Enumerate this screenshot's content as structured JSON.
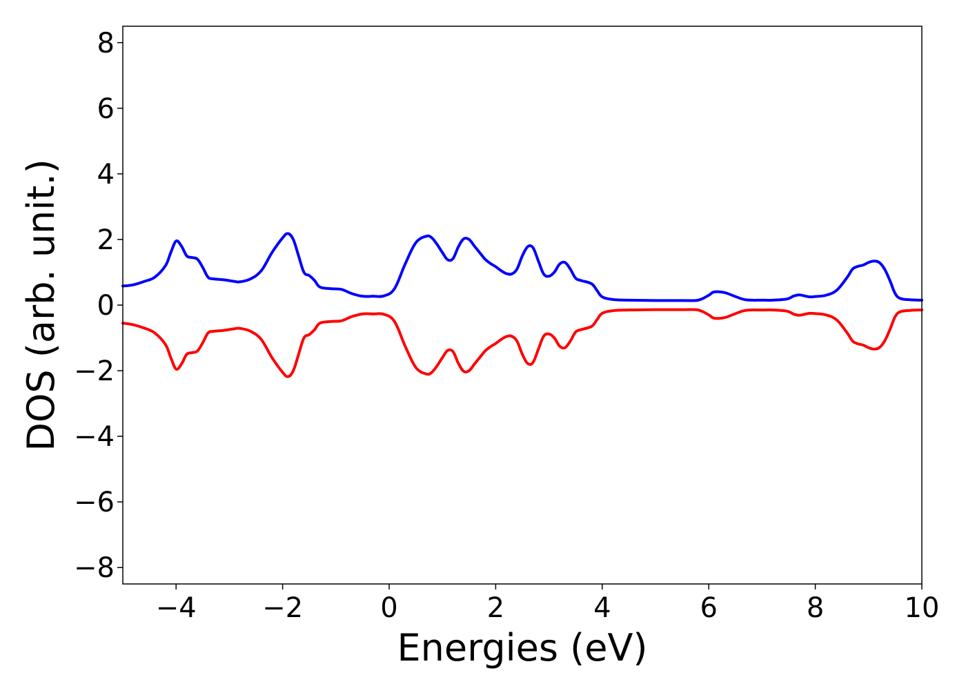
{
  "chart_data": {
    "type": "line",
    "title": "",
    "xlabel": "Energies (eV)",
    "ylabel": "DOS (arb. unit.)",
    "xlim": [
      -5,
      10
    ],
    "ylim": [
      -8.5,
      8.5
    ],
    "x_ticks": [
      -4,
      -2,
      0,
      2,
      4,
      6,
      8,
      10
    ],
    "x_tick_labels": [
      "−4",
      "−2",
      "0",
      "2",
      "4",
      "6",
      "8",
      "10"
    ],
    "y_ticks": [
      -8,
      -6,
      -4,
      -2,
      0,
      2,
      4,
      6,
      8
    ],
    "y_tick_labels": [
      "−8",
      "−6",
      "−4",
      "−2",
      "0",
      "2",
      "4",
      "6",
      "8"
    ],
    "grid": false,
    "legend": "none",
    "series": [
      {
        "color": "#0000ff",
        "x": [
          -5.0,
          -4.8,
          -4.6,
          -4.4,
          -4.2,
          -4.1,
          -4.0,
          -3.9,
          -3.8,
          -3.7,
          -3.6,
          -3.5,
          -3.4,
          -3.3,
          -3.1,
          -2.9,
          -2.8,
          -2.6,
          -2.4,
          -2.2,
          -2.0,
          -1.9,
          -1.8,
          -1.7,
          -1.6,
          -1.5,
          -1.4,
          -1.3,
          -1.1,
          -0.9,
          -0.7,
          -0.5,
          -0.3,
          -0.1,
          0.1,
          0.3,
          0.5,
          0.7,
          0.8,
          0.9,
          1.0,
          1.1,
          1.2,
          1.3,
          1.4,
          1.5,
          1.6,
          1.7,
          1.8,
          1.9,
          2.0,
          2.1,
          2.2,
          2.3,
          2.4,
          2.5,
          2.6,
          2.7,
          2.8,
          2.9,
          3.0,
          3.1,
          3.2,
          3.3,
          3.4,
          3.5,
          3.6,
          3.8,
          3.9,
          4.0,
          4.2,
          4.5,
          5.0,
          5.5,
          5.8,
          6.0,
          6.1,
          6.3,
          6.5,
          6.7,
          7.0,
          7.2,
          7.4,
          7.5,
          7.6,
          7.7,
          7.8,
          7.9,
          8.0,
          8.2,
          8.4,
          8.6,
          8.7,
          8.8,
          8.9,
          9.0,
          9.1,
          9.2,
          9.3,
          9.4,
          9.5,
          9.6,
          9.8,
          10.0
        ],
        "y": [
          0.58,
          0.62,
          0.72,
          0.85,
          1.2,
          1.6,
          1.95,
          1.8,
          1.5,
          1.45,
          1.4,
          1.15,
          0.85,
          0.8,
          0.77,
          0.72,
          0.71,
          0.8,
          1.05,
          1.6,
          2.05,
          2.18,
          2.0,
          1.5,
          1.0,
          0.9,
          0.75,
          0.55,
          0.5,
          0.48,
          0.35,
          0.27,
          0.27,
          0.28,
          0.5,
          1.25,
          1.9,
          2.1,
          2.05,
          1.85,
          1.6,
          1.38,
          1.42,
          1.78,
          2.02,
          2.0,
          1.8,
          1.6,
          1.4,
          1.27,
          1.17,
          1.05,
          0.96,
          0.95,
          1.1,
          1.5,
          1.78,
          1.75,
          1.35,
          0.95,
          0.88,
          1.0,
          1.25,
          1.3,
          1.1,
          0.82,
          0.75,
          0.65,
          0.45,
          0.25,
          0.17,
          0.15,
          0.14,
          0.14,
          0.15,
          0.3,
          0.4,
          0.38,
          0.26,
          0.16,
          0.15,
          0.15,
          0.17,
          0.2,
          0.28,
          0.31,
          0.28,
          0.25,
          0.26,
          0.3,
          0.45,
          0.85,
          1.1,
          1.18,
          1.22,
          1.3,
          1.34,
          1.3,
          1.1,
          0.75,
          0.35,
          0.2,
          0.16,
          0.15
        ]
      },
      {
        "color": "#ff0000",
        "x": [
          -5.0,
          -4.8,
          -4.6,
          -4.4,
          -4.2,
          -4.1,
          -4.0,
          -3.9,
          -3.8,
          -3.7,
          -3.6,
          -3.5,
          -3.4,
          -3.3,
          -3.1,
          -2.9,
          -2.8,
          -2.6,
          -2.4,
          -2.2,
          -2.0,
          -1.9,
          -1.8,
          -1.7,
          -1.6,
          -1.5,
          -1.4,
          -1.3,
          -1.1,
          -0.9,
          -0.7,
          -0.5,
          -0.3,
          -0.1,
          0.1,
          0.3,
          0.5,
          0.7,
          0.8,
          0.9,
          1.0,
          1.1,
          1.2,
          1.3,
          1.4,
          1.5,
          1.6,
          1.7,
          1.8,
          1.9,
          2.0,
          2.1,
          2.2,
          2.3,
          2.4,
          2.5,
          2.6,
          2.7,
          2.8,
          2.9,
          3.0,
          3.1,
          3.2,
          3.3,
          3.4,
          3.5,
          3.6,
          3.8,
          3.9,
          4.0,
          4.2,
          4.5,
          5.0,
          5.5,
          5.8,
          6.0,
          6.1,
          6.3,
          6.5,
          6.7,
          7.0,
          7.2,
          7.4,
          7.5,
          7.6,
          7.7,
          7.8,
          7.9,
          8.0,
          8.2,
          8.4,
          8.6,
          8.7,
          8.8,
          8.9,
          9.0,
          9.1,
          9.2,
          9.3,
          9.4,
          9.5,
          9.6,
          9.8,
          10.0
        ],
        "y": [
          -0.55,
          -0.6,
          -0.7,
          -0.85,
          -1.2,
          -1.6,
          -1.95,
          -1.8,
          -1.5,
          -1.45,
          -1.4,
          -1.15,
          -0.85,
          -0.8,
          -0.77,
          -0.72,
          -0.71,
          -0.8,
          -1.05,
          -1.6,
          -2.05,
          -2.18,
          -2.0,
          -1.5,
          -1.0,
          -0.9,
          -0.75,
          -0.55,
          -0.5,
          -0.48,
          -0.35,
          -0.27,
          -0.27,
          -0.28,
          -0.5,
          -1.25,
          -1.9,
          -2.1,
          -2.05,
          -1.85,
          -1.6,
          -1.38,
          -1.42,
          -1.78,
          -2.02,
          -2.0,
          -1.8,
          -1.6,
          -1.4,
          -1.27,
          -1.17,
          -1.05,
          -0.96,
          -0.95,
          -1.1,
          -1.5,
          -1.78,
          -1.75,
          -1.35,
          -0.95,
          -0.88,
          -1.0,
          -1.25,
          -1.3,
          -1.1,
          -0.82,
          -0.75,
          -0.65,
          -0.45,
          -0.25,
          -0.17,
          -0.15,
          -0.14,
          -0.14,
          -0.15,
          -0.3,
          -0.4,
          -0.38,
          -0.26,
          -0.16,
          -0.15,
          -0.15,
          -0.17,
          -0.2,
          -0.28,
          -0.31,
          -0.28,
          -0.25,
          -0.26,
          -0.3,
          -0.45,
          -0.85,
          -1.1,
          -1.18,
          -1.22,
          -1.3,
          -1.34,
          -1.3,
          -1.1,
          -0.75,
          -0.35,
          -0.2,
          -0.16,
          -0.15
        ]
      }
    ]
  }
}
